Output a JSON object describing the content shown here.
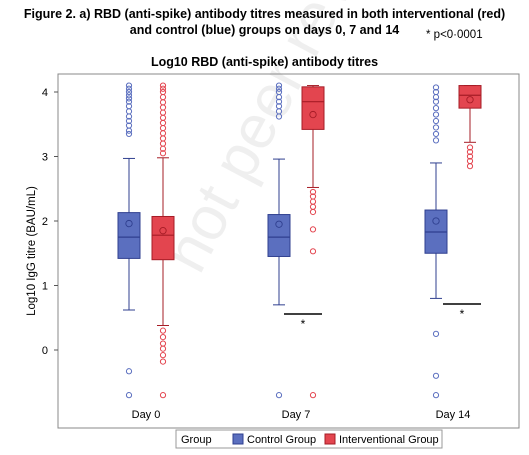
{
  "caption": {
    "line1": "Figure 2. a) RBD (anti-spike) antibody titres  measured in both interventional (red)",
    "line2": "and control (blue) groups on days 0, 7 and 14"
  },
  "significance_note": "* p<0·0001",
  "watermark": "not peer review",
  "chart_data": {
    "type": "box",
    "title": "Log10 RBD (anti-spike) antibody titres",
    "xlabel": "",
    "ylabel": "Log10 IgG titre (BAU/mL)",
    "ylim": [
      -1,
      4.3
    ],
    "yticks": [
      "0",
      "1",
      "2",
      "3",
      "4"
    ],
    "grid": false,
    "legend": {
      "placement": "bottom",
      "title": "Group"
    },
    "categories": [
      "Day 0",
      "Day 7",
      "Day 14"
    ],
    "series": [
      {
        "name": "Control Group",
        "color": "#5b6fbf",
        "boxes": [
          {
            "whisker_low": 0.62,
            "q1": 1.42,
            "median": 1.75,
            "q3": 2.13,
            "whisker_high": 2.97,
            "mean": 1.96,
            "outliers": [
              -0.33,
              -0.7,
              3.35,
              3.4,
              3.48,
              3.55,
              3.62,
              3.7,
              3.78,
              3.85,
              3.9,
              3.95,
              4.0,
              4.05,
              4.1
            ]
          },
          {
            "whisker_low": 0.7,
            "q1": 1.45,
            "median": 1.75,
            "q3": 2.1,
            "whisker_high": 2.96,
            "mean": 1.95,
            "outliers": [
              -0.7,
              3.62,
              3.7,
              3.78,
              3.85,
              3.92,
              4.0,
              4.05,
              4.1
            ]
          },
          {
            "whisker_low": 0.8,
            "q1": 1.5,
            "median": 1.83,
            "q3": 2.17,
            "whisker_high": 2.9,
            "mean": 2.0,
            "outliers": [
              0.25,
              -0.4,
              -0.7,
              3.25,
              3.35,
              3.45,
              3.55,
              3.65,
              3.75,
              3.85,
              3.92,
              4.0,
              4.07
            ]
          }
        ]
      },
      {
        "name": "Interventional Group",
        "color": "#e3454f",
        "boxes": [
          {
            "whisker_low": 0.38,
            "q1": 1.4,
            "median": 1.78,
            "q3": 2.07,
            "whisker_high": 2.98,
            "mean": 1.85,
            "outliers": [
              0.3,
              0.2,
              0.1,
              0.02,
              -0.08,
              -0.18,
              -0.7,
              3.05,
              3.12,
              3.2,
              3.28,
              3.36,
              3.44,
              3.52,
              3.6,
              3.68,
              3.76,
              3.84,
              3.92,
              4.0,
              4.05,
              4.1
            ]
          },
          {
            "whisker_low": 2.52,
            "q1": 3.42,
            "median": 3.85,
            "q3": 4.08,
            "whisker_high": 4.1,
            "mean": 3.65,
            "outliers": [
              2.45,
              2.38,
              2.3,
              2.22,
              2.14,
              1.87,
              1.53,
              -0.7
            ]
          },
          {
            "whisker_low": 3.22,
            "q1": 3.75,
            "median": 3.95,
            "q3": 4.1,
            "whisker_high": 4.1,
            "mean": 3.88,
            "outliers": [
              3.14,
              3.07,
              3.0,
              2.93,
              2.85
            ]
          }
        ]
      }
    ],
    "annotations": [
      {
        "text": "*",
        "category": "Day 7"
      },
      {
        "text": "*",
        "category": "Day 14"
      }
    ]
  }
}
